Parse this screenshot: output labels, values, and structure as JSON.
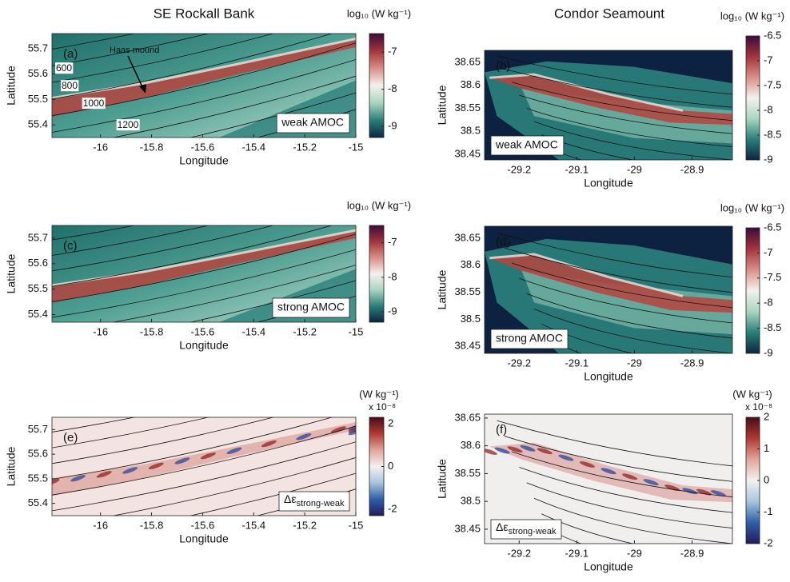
{
  "column_titles": [
    "SE Rockall Bank",
    "Condor Seamount"
  ],
  "chart_data": [
    {
      "type": "heatmap",
      "panel_label": "(a)",
      "xlabel": "Longitude",
      "ylabel": "Latitude",
      "xlim": [
        -16.19,
        -15
      ],
      "ylim": [
        55.35,
        55.76
      ],
      "xticks": [
        -16,
        -15.8,
        -15.6,
        -15.4,
        -15.2,
        -15
      ],
      "yticks": [
        55.4,
        55.5,
        55.6,
        55.7
      ],
      "annotation": "weak AMOC",
      "pointer_label": "Haas mound",
      "contour_labels": [
        600,
        800,
        1000,
        1200
      ],
      "colorbar": {
        "label": "log₁₀ (W kg⁻¹)",
        "lim": [
          -9.3,
          -6.5
        ],
        "ticks": [
          -7,
          -8,
          -9
        ],
        "colors": [
          "#0b2640",
          "#2a7f7a",
          "#a9d6c0",
          "#f3f1ee",
          "#d98e86",
          "#a2343d",
          "#3d0b3b"
        ]
      }
    },
    {
      "type": "heatmap",
      "panel_label": "(b)",
      "xlabel": "Longitude",
      "ylabel": "Latitude",
      "xlim": [
        -29.26,
        -28.83
      ],
      "ylim": [
        38.438,
        38.676
      ],
      "xticks": [
        -29.2,
        -29.1,
        -29,
        -28.9
      ],
      "yticks": [
        38.45,
        38.5,
        38.55,
        38.6,
        38.65
      ],
      "annotation": "weak AMOC",
      "colorbar": {
        "label": "log₁₀ (W kg⁻¹)",
        "lim": [
          -9,
          -6.5
        ],
        "ticks": [
          -6.5,
          -7,
          -7.5,
          -8,
          -8.5,
          -9
        ],
        "colors": [
          "#0b2640",
          "#2a7f7a",
          "#a9d6c0",
          "#f3f1ee",
          "#d98e86",
          "#a2343d",
          "#3d0b3b"
        ]
      }
    },
    {
      "type": "heatmap",
      "panel_label": "(c)",
      "xlabel": "Longitude",
      "ylabel": "Latitude",
      "xlim": [
        -16.19,
        -15
      ],
      "ylim": [
        55.37,
        55.75
      ],
      "xticks": [
        -16,
        -15.8,
        -15.6,
        -15.4,
        -15.2,
        -15
      ],
      "yticks": [
        55.4,
        55.5,
        55.6,
        55.7
      ],
      "annotation": "strong AMOC",
      "colorbar": {
        "label": "log₁₀ (W kg⁻¹)",
        "lim": [
          -9.3,
          -6.5
        ],
        "ticks": [
          -7,
          -8,
          -9
        ],
        "colors": [
          "#0b2640",
          "#2a7f7a",
          "#a9d6c0",
          "#f3f1ee",
          "#d98e86",
          "#a2343d",
          "#3d0b3b"
        ]
      }
    },
    {
      "type": "heatmap",
      "panel_label": "(d)",
      "xlabel": "Longitude",
      "ylabel": "Latitude",
      "xlim": [
        -29.26,
        -28.83
      ],
      "ylim": [
        38.437,
        38.672
      ],
      "xticks": [
        -29.2,
        -29.1,
        -29,
        -28.9
      ],
      "yticks": [
        38.45,
        38.5,
        38.55,
        38.6,
        38.65
      ],
      "annotation": "strong AMOC",
      "colorbar": {
        "label": "log₁₀ (W kg⁻¹)",
        "lim": [
          -9,
          -6.5
        ],
        "ticks": [
          -6.5,
          -7,
          -7.5,
          -8,
          -8.5,
          -9
        ],
        "colors": [
          "#0b2640",
          "#2a7f7a",
          "#a9d6c0",
          "#f3f1ee",
          "#d98e86",
          "#a2343d",
          "#3d0b3b"
        ]
      }
    },
    {
      "type": "heatmap",
      "panel_label": "(e)",
      "xlabel": "Longitude",
      "ylabel": "Latitude",
      "xlim": [
        -16.19,
        -15
      ],
      "ylim": [
        55.35,
        55.75
      ],
      "xticks": [
        -16,
        -15.8,
        -15.6,
        -15.4,
        -15.2,
        -15
      ],
      "yticks": [
        55.4,
        55.5,
        55.6,
        55.7
      ],
      "annotation": {
        "symbol": "Δε",
        "subscript": "strong-weak"
      },
      "colorbar": {
        "label": "(W kg⁻¹)",
        "scale_label": "x 10⁻⁸",
        "lim": [
          -2.3,
          2.3
        ],
        "ticks": [
          2,
          0,
          -2
        ],
        "colors": [
          "#221a5c",
          "#2f5fa8",
          "#a7c4de",
          "#f4f1f0",
          "#e0a59a",
          "#b03a33",
          "#4a0b18"
        ]
      }
    },
    {
      "type": "heatmap",
      "panel_label": "(f)",
      "xlabel": "Longitude",
      "ylabel": "Latitude",
      "xlim": [
        -29.26,
        -28.83
      ],
      "ylim": [
        38.424,
        38.657
      ],
      "xticks": [
        -29.2,
        -29.1,
        -29,
        -28.9
      ],
      "yticks": [
        38.45,
        38.5,
        38.55,
        38.6,
        38.65
      ],
      "annotation": {
        "symbol": "Δε",
        "subscript": "strong-weak"
      },
      "colorbar": {
        "label": "(W kg⁻¹)",
        "scale_label": "x 10⁻⁸",
        "lim": [
          -2,
          2
        ],
        "ticks": [
          2,
          1,
          0,
          -1,
          -2
        ],
        "colors": [
          "#221a5c",
          "#2f5fa8",
          "#a7c4de",
          "#f4f1f0",
          "#e0a59a",
          "#b03a33",
          "#4a0b18"
        ]
      }
    }
  ]
}
